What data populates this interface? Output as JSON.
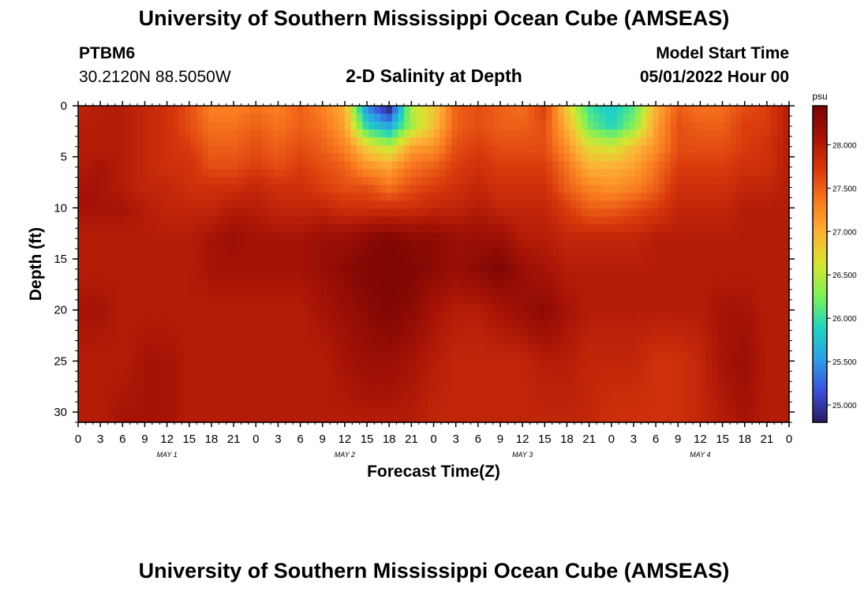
{
  "header": {
    "title": "University of Southern Mississippi Ocean Cube (AMSEAS)",
    "station": "PTBM6",
    "coords": "30.2120N  88.5050W",
    "subtitle": "2-D Salinity at Depth",
    "model_start_label": "Model Start Time",
    "model_start_value": "05/01/2022 Hour 00"
  },
  "footer": {
    "title": "University of Southern Mississippi Ocean Cube (AMSEAS)"
  },
  "colors": {
    "scale": [
      "#2b1a5e",
      "#3b4fd8",
      "#2e9ee8",
      "#21d4c0",
      "#7ef05a",
      "#d8e531",
      "#fdb237",
      "#f97a1f",
      "#d9380c",
      "#a81406",
      "#7a0403"
    ]
  },
  "chart_data": {
    "type": "heatmap",
    "xlabel": "Forecast Time(Z)",
    "ylabel": "Depth (ft)",
    "x_tick_labels": [
      "0",
      "3",
      "6",
      "9",
      "12",
      "15",
      "18",
      "21",
      "0",
      "3",
      "6",
      "9",
      "12",
      "15",
      "18",
      "21",
      "0",
      "3",
      "6",
      "9",
      "12",
      "15",
      "18",
      "21",
      "0",
      "3",
      "6",
      "9",
      "12",
      "15",
      "18",
      "21",
      "0"
    ],
    "x_range_hours": [
      0,
      96
    ],
    "day_labels": [
      {
        "label": "MAY 1",
        "hour": 12
      },
      {
        "label": "MAY 2",
        "hour": 36
      },
      {
        "label": "MAY 3",
        "hour": 60
      },
      {
        "label": "MAY 4",
        "hour": 84
      }
    ],
    "y_ticks": [
      0,
      5,
      10,
      15,
      20,
      25,
      30
    ],
    "ylim": [
      0,
      31
    ],
    "y_inverted": true,
    "colorbar": {
      "unit": "psu",
      "min": 24.8,
      "max": 28.45,
      "ticks": [
        "25.000",
        "25.500",
        "26.000",
        "26.500",
        "27.000",
        "27.500",
        "28.000"
      ]
    },
    "grid_hours": [
      0,
      3,
      6,
      9,
      12,
      15,
      18,
      21,
      24,
      27,
      30,
      33,
      36,
      39,
      42,
      45,
      48,
      51,
      54,
      57,
      60,
      63,
      66,
      69,
      72,
      75,
      78,
      81,
      84,
      87,
      90,
      93,
      96
    ],
    "grid_depths_ft": [
      0,
      2,
      4,
      6,
      8,
      10,
      13,
      16,
      20,
      25,
      31
    ],
    "salinity_psu": [
      [
        27.9,
        28.0,
        28.0,
        27.9,
        27.8,
        27.6,
        27.3,
        27.3,
        27.4,
        27.3,
        27.5,
        27.3,
        27.0,
        25.4,
        24.8,
        26.5,
        26.8,
        27.5,
        27.6,
        27.5,
        27.4,
        27.7,
        26.8,
        26.0,
        25.8,
        26.1,
        27.0,
        27.5,
        27.4,
        27.4,
        27.6,
        27.7,
        28.0
      ],
      [
        28.0,
        28.0,
        28.0,
        27.9,
        27.8,
        27.6,
        27.4,
        27.4,
        27.5,
        27.4,
        27.5,
        27.4,
        27.1,
        25.9,
        25.6,
        26.4,
        26.9,
        27.5,
        27.6,
        27.5,
        27.5,
        27.6,
        27.0,
        26.2,
        25.9,
        26.3,
        27.1,
        27.6,
        27.5,
        27.5,
        27.7,
        27.7,
        28.0
      ],
      [
        28.0,
        28.0,
        28.0,
        27.9,
        27.8,
        27.7,
        27.5,
        27.5,
        27.6,
        27.5,
        27.6,
        27.5,
        27.3,
        26.8,
        26.5,
        27.1,
        27.2,
        27.6,
        27.7,
        27.6,
        27.6,
        27.6,
        27.2,
        26.7,
        26.6,
        26.9,
        27.2,
        27.6,
        27.6,
        27.6,
        27.7,
        27.8,
        28.0
      ],
      [
        28.0,
        28.1,
        28.0,
        27.9,
        27.8,
        27.8,
        27.6,
        27.6,
        27.7,
        27.6,
        27.7,
        27.6,
        27.5,
        27.2,
        27.1,
        27.4,
        27.5,
        27.7,
        27.8,
        27.7,
        27.7,
        27.7,
        27.4,
        27.0,
        27.0,
        27.1,
        27.4,
        27.7,
        27.7,
        27.7,
        27.8,
        27.8,
        28.0
      ],
      [
        28.1,
        28.1,
        28.0,
        27.9,
        27.9,
        27.8,
        27.8,
        27.8,
        27.9,
        27.8,
        27.8,
        27.7,
        27.6,
        27.6,
        27.4,
        27.6,
        27.7,
        27.8,
        27.9,
        27.8,
        27.8,
        27.8,
        27.5,
        27.3,
        27.2,
        27.3,
        27.5,
        27.8,
        27.8,
        27.8,
        27.9,
        27.9,
        28.0
      ],
      [
        28.1,
        28.1,
        28.1,
        28.0,
        27.9,
        27.9,
        27.9,
        28.0,
        28.0,
        27.9,
        27.9,
        27.9,
        27.8,
        27.8,
        27.8,
        27.8,
        27.9,
        27.9,
        28.0,
        27.9,
        27.9,
        27.9,
        27.7,
        27.5,
        27.5,
        27.6,
        27.7,
        27.9,
        27.9,
        27.9,
        28.0,
        28.0,
        28.0
      ],
      [
        28.0,
        28.0,
        28.0,
        28.0,
        28.0,
        28.0,
        28.1,
        28.2,
        28.1,
        28.1,
        28.1,
        28.2,
        28.2,
        28.3,
        28.4,
        28.3,
        28.3,
        28.2,
        28.2,
        28.2,
        28.0,
        28.0,
        27.9,
        27.9,
        27.9,
        27.9,
        28.0,
        28.0,
        28.0,
        28.0,
        28.0,
        28.0,
        28.0
      ],
      [
        28.0,
        28.0,
        28.0,
        28.0,
        28.0,
        28.0,
        28.1,
        28.1,
        28.1,
        28.1,
        28.1,
        28.2,
        28.3,
        28.4,
        28.4,
        28.4,
        28.3,
        28.2,
        28.3,
        28.4,
        28.2,
        28.1,
        28.0,
        28.0,
        28.0,
        28.0,
        28.0,
        28.0,
        28.0,
        28.0,
        28.0,
        28.0,
        28.0
      ],
      [
        28.1,
        28.1,
        28.0,
        28.0,
        28.0,
        28.0,
        28.0,
        28.0,
        28.0,
        28.0,
        28.0,
        28.1,
        28.2,
        28.3,
        28.4,
        28.3,
        28.1,
        28.0,
        28.0,
        28.1,
        28.2,
        28.3,
        28.1,
        28.0,
        28.0,
        28.0,
        28.0,
        28.0,
        28.0,
        28.1,
        28.1,
        28.0,
        28.0
      ],
      [
        28.0,
        28.0,
        28.0,
        28.1,
        28.1,
        28.0,
        28.0,
        28.0,
        28.0,
        28.0,
        28.0,
        28.0,
        28.1,
        28.2,
        28.2,
        28.1,
        28.0,
        27.9,
        27.9,
        27.9,
        27.9,
        28.0,
        28.0,
        27.9,
        27.9,
        27.9,
        27.8,
        27.8,
        27.9,
        28.1,
        28.2,
        28.0,
        28.0
      ],
      [
        28.0,
        28.0,
        28.1,
        28.1,
        28.1,
        28.0,
        28.0,
        28.0,
        28.0,
        28.0,
        28.0,
        28.0,
        28.0,
        28.0,
        28.0,
        28.0,
        27.9,
        27.9,
        27.9,
        27.9,
        27.9,
        27.9,
        27.9,
        27.9,
        27.8,
        27.8,
        27.8,
        27.8,
        27.9,
        28.0,
        28.1,
        28.0,
        28.0
      ]
    ]
  }
}
